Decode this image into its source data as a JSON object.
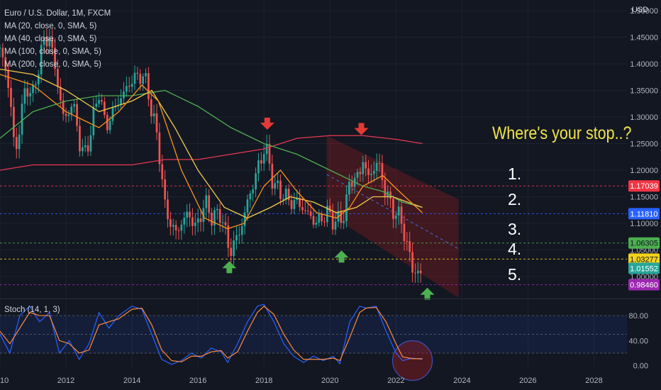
{
  "header": {
    "symbol": "Euro / U.S. Dollar, 1M, FXCM",
    "ma_labels": [
      "MA (20, close, 0, SMA, 5)",
      "MA (40, close, 0, SMA, 5)",
      "MA (100, close, 0, SMA, 5)",
      "MA (200, close, 0, SMA, 5)"
    ],
    "currency": "USD"
  },
  "stoch_label": "Stoch (14, 1, 3)",
  "annotation": {
    "title": "Where's your stop..?",
    "list": [
      "1.",
      "2.",
      "3.",
      "4.",
      "5."
    ]
  },
  "colors": {
    "background": "#131722",
    "bull": "#26a69a",
    "bear": "#ef5350",
    "ma20": "#f7931a",
    "ma40": "#f2c94c",
    "ma100": "#4caf50",
    "ma200": "#e53950",
    "stoch_k": "#2962ff",
    "stoch_d": "#ff8a3d",
    "arrow_up": "#4caf50",
    "arrow_down": "#e53935",
    "title": "#f0e44a"
  },
  "chart_data": {
    "type": "candlestick",
    "x_ticks": [
      "2010",
      "2012",
      "2014",
      "2016",
      "2018",
      "2020",
      "2022",
      "2024",
      "2026",
      "2028"
    ],
    "y_ticks": [
      "1.50000",
      "1.45000",
      "1.40000",
      "1.35000",
      "1.30000",
      "1.25000",
      "1.20000",
      "1.15000",
      "1.10000",
      "1.05000",
      "1.00000"
    ],
    "ylim": [
      0.96,
      1.52
    ],
    "xlim": [
      2010.0,
      2029.0
    ],
    "price_levels": [
      {
        "label": "1.17039",
        "value": 1.17039,
        "color": "#f23645",
        "line": "dashed"
      },
      {
        "label": "1.11810",
        "value": 1.1181,
        "color": "#2962ff",
        "line": "dashed"
      },
      {
        "label": "1.06305",
        "value": 1.06305,
        "color": "#4caf50",
        "line": "dashed"
      },
      {
        "label": "1.03277",
        "value": 1.03277,
        "color": "#f2d21b",
        "line": "dashed"
      },
      {
        "label": "1.01552",
        "value": 1.01552,
        "color": "#26a69a",
        "line": "none"
      },
      {
        "label": "0.98460",
        "value": 0.9846,
        "color": "#9c27b0",
        "line": "dashed"
      }
    ],
    "closes": [
      [
        2010.0,
        1.43
      ],
      [
        2010.3,
        1.35
      ],
      [
        2010.45,
        1.22
      ],
      [
        2010.6,
        1.29
      ],
      [
        2010.8,
        1.36
      ],
      [
        2011.0,
        1.34
      ],
      [
        2011.3,
        1.44
      ],
      [
        2011.5,
        1.45
      ],
      [
        2011.7,
        1.38
      ],
      [
        2011.95,
        1.29
      ],
      [
        2012.2,
        1.33
      ],
      [
        2012.45,
        1.24
      ],
      [
        2012.6,
        1.23
      ],
      [
        2012.8,
        1.29
      ],
      [
        2013.0,
        1.35
      ],
      [
        2013.2,
        1.28
      ],
      [
        2013.5,
        1.32
      ],
      [
        2013.8,
        1.35
      ],
      [
        2014.0,
        1.37
      ],
      [
        2014.3,
        1.38
      ],
      [
        2014.45,
        1.36
      ],
      [
        2014.6,
        1.31
      ],
      [
        2014.8,
        1.25
      ],
      [
        2015.0,
        1.13
      ],
      [
        2015.3,
        1.08
      ],
      [
        2015.5,
        1.1
      ],
      [
        2015.7,
        1.12
      ],
      [
        2015.95,
        1.09
      ],
      [
        2016.2,
        1.14
      ],
      [
        2016.45,
        1.11
      ],
      [
        2016.7,
        1.12
      ],
      [
        2016.9,
        1.06
      ],
      [
        2017.0,
        1.05
      ],
      [
        2017.3,
        1.09
      ],
      [
        2017.5,
        1.14
      ],
      [
        2017.7,
        1.18
      ],
      [
        2018.0,
        1.24
      ],
      [
        2018.1,
        1.23
      ],
      [
        2018.3,
        1.17
      ],
      [
        2018.5,
        1.16
      ],
      [
        2018.8,
        1.14
      ],
      [
        2019.0,
        1.14
      ],
      [
        2019.3,
        1.12
      ],
      [
        2019.6,
        1.1
      ],
      [
        2019.9,
        1.12
      ],
      [
        2020.2,
        1.1
      ],
      [
        2020.45,
        1.12
      ],
      [
        2020.6,
        1.18
      ],
      [
        2020.9,
        1.19
      ],
      [
        2021.0,
        1.22
      ],
      [
        2021.2,
        1.18
      ],
      [
        2021.4,
        1.22
      ],
      [
        2021.6,
        1.18
      ],
      [
        2021.85,
        1.13
      ],
      [
        2022.0,
        1.12
      ],
      [
        2022.2,
        1.1
      ],
      [
        2022.35,
        1.05
      ],
      [
        2022.5,
        1.02
      ],
      [
        2022.65,
        1.0
      ],
      [
        2022.8,
        1.01
      ]
    ],
    "ma20": [
      [
        2010.0,
        1.38
      ],
      [
        2011.0,
        1.36
      ],
      [
        2012.0,
        1.31
      ],
      [
        2013.0,
        1.28
      ],
      [
        2013.6,
        1.31
      ],
      [
        2014.3,
        1.36
      ],
      [
        2014.8,
        1.33
      ],
      [
        2015.5,
        1.2
      ],
      [
        2016.2,
        1.11
      ],
      [
        2016.9,
        1.09
      ],
      [
        2017.4,
        1.1
      ],
      [
        2018.0,
        1.17
      ],
      [
        2018.5,
        1.2
      ],
      [
        2019.0,
        1.16
      ],
      [
        2019.6,
        1.12
      ],
      [
        2020.2,
        1.11
      ],
      [
        2020.6,
        1.13
      ],
      [
        2021.0,
        1.17
      ],
      [
        2021.6,
        1.19
      ],
      [
        2022.1,
        1.16
      ],
      [
        2022.8,
        1.12
      ]
    ],
    "ma40": [
      [
        2010.0,
        1.39
      ],
      [
        2011.0,
        1.38
      ],
      [
        2012.0,
        1.35
      ],
      [
        2013.0,
        1.31
      ],
      [
        2014.0,
        1.33
      ],
      [
        2014.6,
        1.35
      ],
      [
        2015.3,
        1.28
      ],
      [
        2016.0,
        1.2
      ],
      [
        2016.8,
        1.13
      ],
      [
        2017.5,
        1.11
      ],
      [
        2018.2,
        1.13
      ],
      [
        2018.8,
        1.15
      ],
      [
        2019.5,
        1.14
      ],
      [
        2020.2,
        1.12
      ],
      [
        2020.8,
        1.13
      ],
      [
        2021.3,
        1.15
      ],
      [
        2021.9,
        1.15
      ],
      [
        2022.8,
        1.13
      ]
    ],
    "ma100": [
      [
        2010.0,
        1.26
      ],
      [
        2011.0,
        1.31
      ],
      [
        2012.0,
        1.33
      ],
      [
        2013.0,
        1.34
      ],
      [
        2014.0,
        1.34
      ],
      [
        2015.0,
        1.35
      ],
      [
        2016.0,
        1.32
      ],
      [
        2017.0,
        1.28
      ],
      [
        2018.0,
        1.25
      ],
      [
        2019.0,
        1.23
      ],
      [
        2020.0,
        1.2
      ],
      [
        2021.0,
        1.17
      ],
      [
        2021.6,
        1.16
      ],
      [
        2022.2,
        1.14
      ],
      [
        2022.8,
        1.13
      ]
    ],
    "ma200": [
      [
        2010.0,
        1.2
      ],
      [
        2011.0,
        1.21
      ],
      [
        2012.0,
        1.21
      ],
      [
        2013.0,
        1.21
      ],
      [
        2014.0,
        1.21
      ],
      [
        2015.0,
        1.22
      ],
      [
        2016.0,
        1.22
      ],
      [
        2017.0,
        1.23
      ],
      [
        2018.0,
        1.24
      ],
      [
        2019.0,
        1.26
      ],
      [
        2020.0,
        1.265
      ],
      [
        2021.0,
        1.265
      ],
      [
        2022.0,
        1.258
      ],
      [
        2022.8,
        1.25
      ]
    ],
    "arrows": [
      {
        "dir": "down",
        "x": 2018.1,
        "y": 1.28
      },
      {
        "dir": "down",
        "x": 2020.95,
        "y": 1.27
      },
      {
        "dir": "up",
        "x": 2016.95,
        "y": 1.025
      },
      {
        "dir": "up",
        "x": 2020.35,
        "y": 1.045
      },
      {
        "dir": "up",
        "x": 2022.95,
        "y": 0.975
      }
    ],
    "channel": {
      "upper": [
        [
          2019.9,
          1.265
        ],
        [
          2023.9,
          1.145
        ]
      ],
      "lower": [
        [
          2019.9,
          1.12
        ],
        [
          2023.9,
          0.96
        ]
      ],
      "mid": [
        [
          2019.9,
          1.192
        ],
        [
          2023.9,
          1.052
        ]
      ]
    },
    "stoch": {
      "y_ticks": [
        "80.00",
        "40.00",
        "0.00"
      ],
      "ylim": [
        -5,
        105
      ],
      "band": [
        20,
        80
      ],
      "k": [
        [
          2010.0,
          50
        ],
        [
          2010.3,
          20
        ],
        [
          2010.6,
          80
        ],
        [
          2010.9,
          95
        ],
        [
          2011.2,
          70
        ],
        [
          2011.5,
          85
        ],
        [
          2011.8,
          20
        ],
        [
          2012.1,
          40
        ],
        [
          2012.4,
          10
        ],
        [
          2012.7,
          35
        ],
        [
          2013.0,
          85
        ],
        [
          2013.3,
          60
        ],
        [
          2013.6,
          80
        ],
        [
          2014.0,
          95
        ],
        [
          2014.3,
          90
        ],
        [
          2014.6,
          50
        ],
        [
          2014.9,
          10
        ],
        [
          2015.2,
          2
        ],
        [
          2015.5,
          8
        ],
        [
          2015.8,
          20
        ],
        [
          2016.1,
          12
        ],
        [
          2016.4,
          28
        ],
        [
          2016.7,
          22
        ],
        [
          2016.9,
          5
        ],
        [
          2017.2,
          35
        ],
        [
          2017.5,
          70
        ],
        [
          2017.8,
          95
        ],
        [
          2018.0,
          98
        ],
        [
          2018.3,
          70
        ],
        [
          2018.6,
          35
        ],
        [
          2018.9,
          15
        ],
        [
          2019.2,
          5
        ],
        [
          2019.5,
          15
        ],
        [
          2019.8,
          8
        ],
        [
          2020.1,
          15
        ],
        [
          2020.3,
          3
        ],
        [
          2020.6,
          70
        ],
        [
          2020.9,
          95
        ],
        [
          2021.1,
          92
        ],
        [
          2021.4,
          95
        ],
        [
          2021.7,
          55
        ],
        [
          2022.0,
          20
        ],
        [
          2022.2,
          8
        ],
        [
          2022.5,
          12
        ],
        [
          2022.8,
          10
        ]
      ],
      "d": [
        [
          2010.0,
          55
        ],
        [
          2010.3,
          35
        ],
        [
          2010.6,
          60
        ],
        [
          2010.9,
          85
        ],
        [
          2011.2,
          80
        ],
        [
          2011.5,
          80
        ],
        [
          2011.8,
          40
        ],
        [
          2012.1,
          35
        ],
        [
          2012.4,
          20
        ],
        [
          2012.7,
          25
        ],
        [
          2013.0,
          65
        ],
        [
          2013.3,
          70
        ],
        [
          2013.6,
          75
        ],
        [
          2014.0,
          90
        ],
        [
          2014.3,
          92
        ],
        [
          2014.6,
          65
        ],
        [
          2014.9,
          25
        ],
        [
          2015.2,
          8
        ],
        [
          2015.5,
          6
        ],
        [
          2015.8,
          15
        ],
        [
          2016.1,
          15
        ],
        [
          2016.4,
          22
        ],
        [
          2016.7,
          24
        ],
        [
          2016.9,
          12
        ],
        [
          2017.2,
          22
        ],
        [
          2017.5,
          55
        ],
        [
          2017.8,
          85
        ],
        [
          2018.0,
          95
        ],
        [
          2018.3,
          82
        ],
        [
          2018.6,
          50
        ],
        [
          2018.9,
          25
        ],
        [
          2019.2,
          10
        ],
        [
          2019.5,
          10
        ],
        [
          2019.8,
          10
        ],
        [
          2020.1,
          12
        ],
        [
          2020.3,
          8
        ],
        [
          2020.6,
          45
        ],
        [
          2020.9,
          85
        ],
        [
          2021.1,
          92
        ],
        [
          2021.4,
          93
        ],
        [
          2021.7,
          70
        ],
        [
          2022.0,
          35
        ],
        [
          2022.2,
          14
        ],
        [
          2022.5,
          11
        ],
        [
          2022.8,
          11
        ]
      ]
    }
  }
}
